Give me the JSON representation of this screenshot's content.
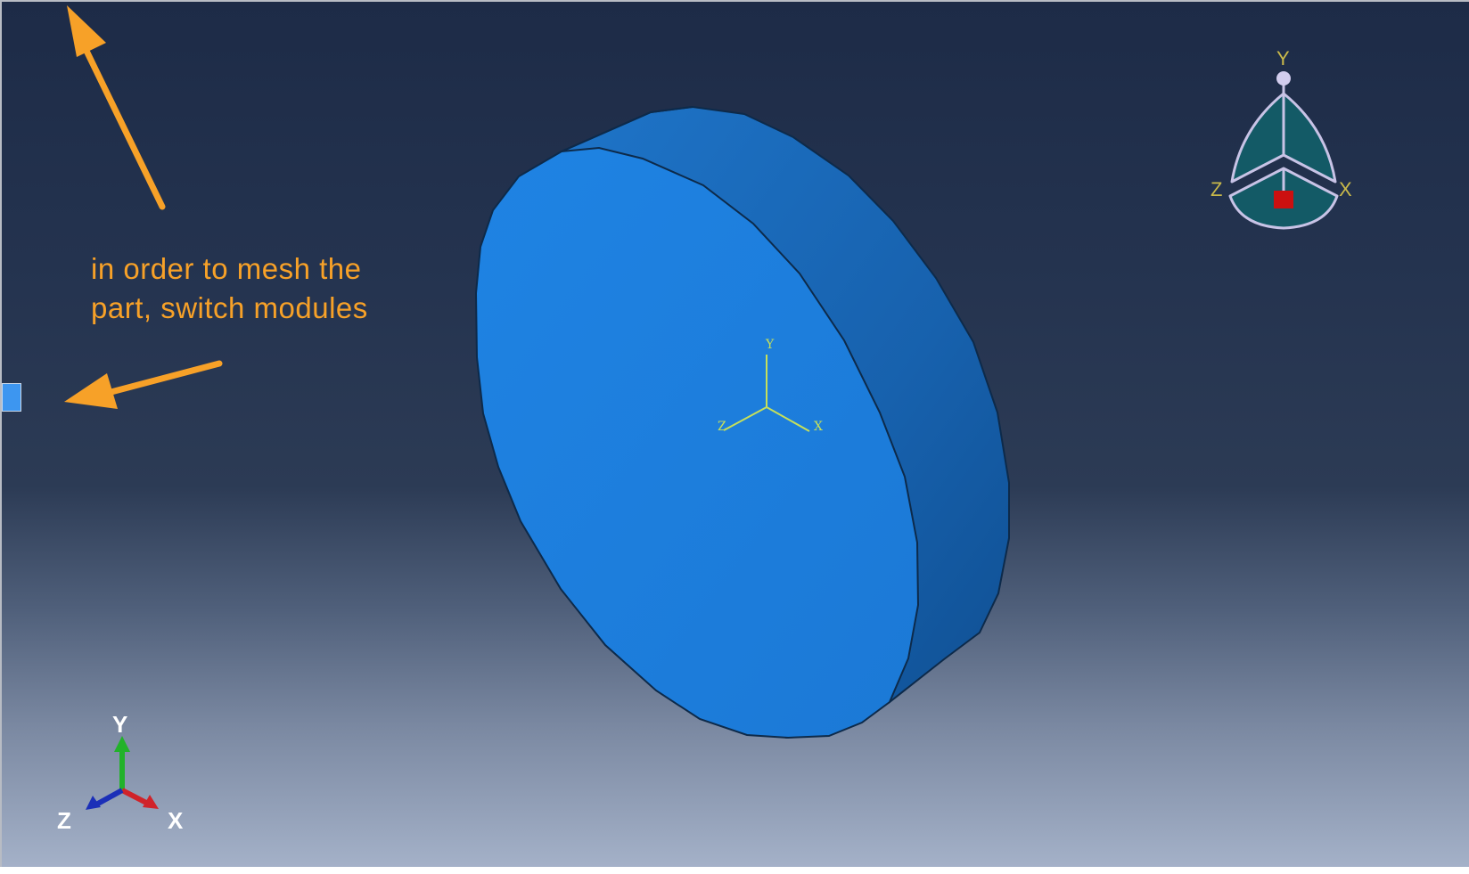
{
  "annotation": {
    "line1": "in order to mesh the",
    "line2": "part, switch modules",
    "color": "#f7a128"
  },
  "viewport": {
    "background_top": "#1d2b47",
    "background_bottom": "#a4b1c8",
    "part_color": "#1e7fdd"
  },
  "view_cube": {
    "y_label": "Y",
    "x_label": "X",
    "z_label": "Z"
  },
  "part_csys": {
    "y_label": "Y",
    "x_label": "X",
    "z_label": "Z"
  },
  "global_triad": {
    "y_label": "Y",
    "x_label": "X",
    "z_label": "Z",
    "y_color": "#22b22a",
    "x_color": "#d0232a",
    "z_color": "#1b2fb8"
  },
  "icons": [
    "arrow-up-left-icon",
    "arrow-left-icon",
    "view-cube-icon",
    "triad-icon"
  ]
}
